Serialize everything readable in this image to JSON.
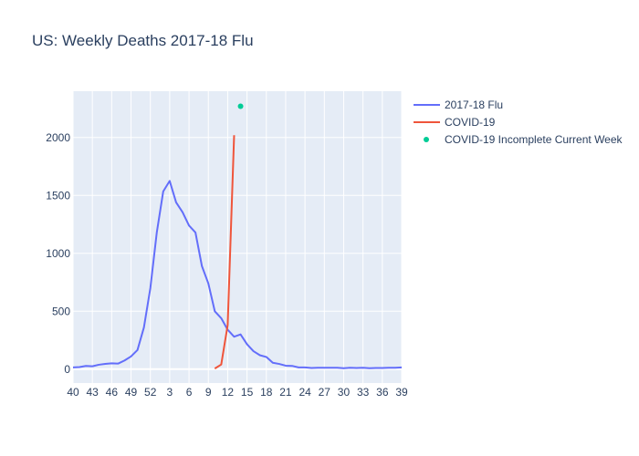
{
  "chart_data": {
    "type": "line",
    "title": "US: Weekly Deaths 2017-18 Flu",
    "xlabel": "",
    "ylabel": "",
    "ylim": [
      -120,
      2400
    ],
    "x_tick_labels": [
      "40",
      "43",
      "46",
      "49",
      "52",
      "3",
      "6",
      "9",
      "12",
      "15",
      "18",
      "21",
      "24",
      "27",
      "30",
      "33",
      "36",
      "39"
    ],
    "y_ticks": [
      0,
      500,
      1000,
      1500,
      2000
    ],
    "y_tick_labels": [
      "0",
      "500",
      "1000",
      "1500",
      "2000"
    ],
    "grid": true,
    "legend_position": "right",
    "series": [
      {
        "name": "2017-18 Flu",
        "mode": "line",
        "color": "#636efa",
        "x": [
          0,
          1,
          2,
          3,
          4,
          5,
          6,
          7,
          8,
          9,
          10,
          11,
          12,
          13,
          14,
          15,
          16,
          17,
          18,
          19,
          20,
          21,
          22,
          23,
          24,
          25,
          26,
          27,
          28,
          29,
          30,
          31,
          32,
          33,
          34,
          35,
          36,
          37,
          38,
          39,
          40,
          41,
          42,
          43,
          44,
          45,
          46,
          47,
          48,
          49,
          50,
          51
        ],
        "values": [
          15,
          18,
          28,
          25,
          38,
          45,
          50,
          48,
          75,
          110,
          165,
          360,
          700,
          1180,
          1535,
          1625,
          1440,
          1355,
          1240,
          1180,
          890,
          740,
          500,
          440,
          340,
          280,
          300,
          215,
          155,
          120,
          105,
          55,
          45,
          30,
          28,
          15,
          15,
          10,
          12,
          12,
          12,
          12,
          8,
          12,
          10,
          12,
          8,
          10,
          10,
          12,
          12,
          15
        ]
      },
      {
        "name": "COVID-19",
        "mode": "line",
        "color": "#ef553b",
        "x": [
          22,
          23,
          24,
          25
        ],
        "values": [
          5,
          40,
          380,
          2020
        ]
      },
      {
        "name": "COVID-19 Incomplete Current Week",
        "mode": "markers",
        "color": "#00cc96",
        "x": [
          26
        ],
        "values": [
          2270
        ]
      }
    ]
  }
}
